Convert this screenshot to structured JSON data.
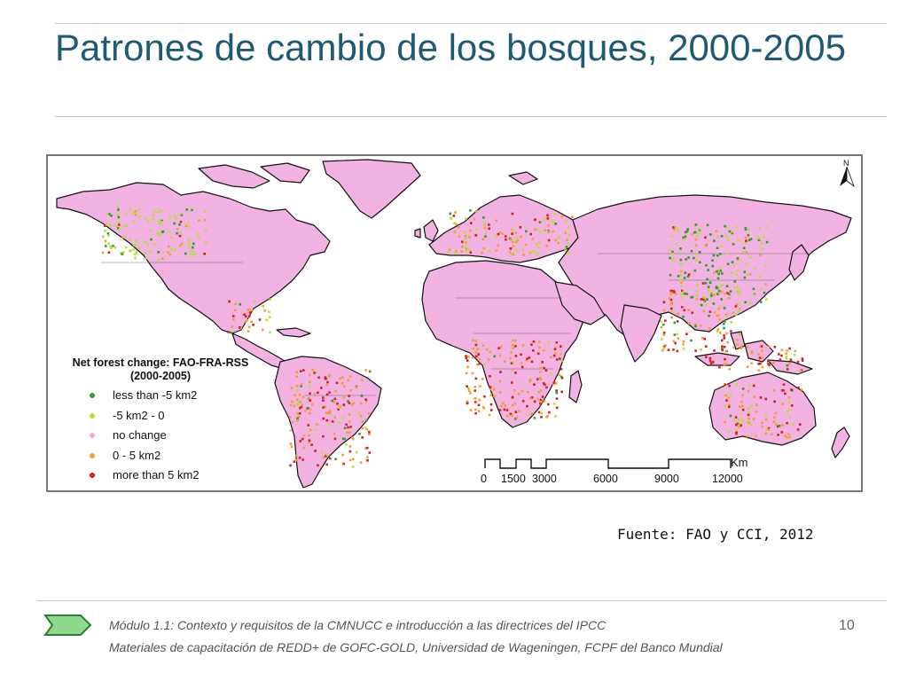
{
  "slide": {
    "title": "Patrones de cambio de los bosques, 2000-2005",
    "source": "Fuente: FAO y CCI, 2012",
    "page_number": "10",
    "footer_line1": "Módulo 1.1: Contexto y requisitos de la CMNUCC e introducción a las directrices del IPCC",
    "footer_line2": "Materiales de capacitación de REDD+ de GOFC-GOLD, Universidad de Wageningen, FCPF del Banco Mundial",
    "footer_arrow_color": "#8fd98f"
  },
  "map": {
    "north_label": "N",
    "legend": {
      "title": "Net forest change: FAO-FRA-RSS",
      "subtitle": "(2000-2005)",
      "items": [
        {
          "label": "less than  -5 km2",
          "color": "#2e9e2e"
        },
        {
          "label": "-5 km2 - 0",
          "color": "#b5e02e"
        },
        {
          "label": "no change",
          "color": "#f3a8dd"
        },
        {
          "label": "0 - 5 km2",
          "color": "#f0a030"
        },
        {
          "label": "more than 5 km2",
          "color": "#d62020"
        }
      ]
    },
    "scale_bar": {
      "unit": "Km",
      "ticks": [
        "0",
        "1500",
        "3000",
        "6000",
        "9000",
        "12000"
      ]
    },
    "land_color": "#f2b3e2",
    "outline_color": "#111111"
  }
}
